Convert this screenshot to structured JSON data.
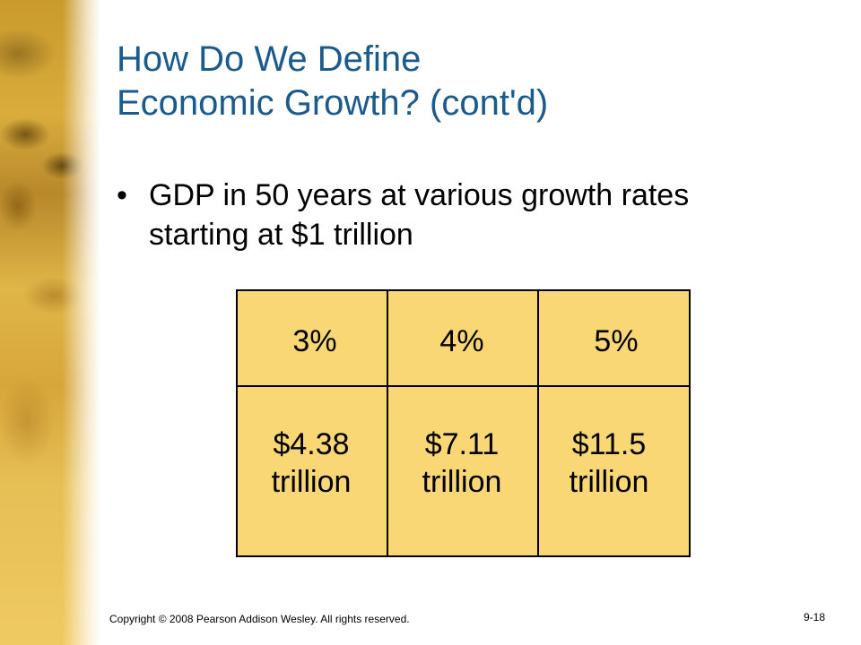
{
  "title": {
    "line1": "How Do We Define",
    "line2": "Economic Growth? (cont'd)"
  },
  "bullet": {
    "symbol": "•",
    "text_line1": "GDP in 50 years at various growth rates",
    "text_line2": "starting at $1 trillion"
  },
  "table": {
    "columns": [
      {
        "rate": "3%",
        "amount": "$4.38",
        "unit": "trillion"
      },
      {
        "rate": "4%",
        "amount": "$7.11",
        "unit": "trillion"
      },
      {
        "rate": "5%",
        "amount": "$11.5",
        "unit": "trillion"
      }
    ],
    "fill_color": "#f8d774"
  },
  "footer": {
    "copyright": "Copyright © 2008 Pearson Addison Wesley. All rights reserved.",
    "slide_number": "9-18"
  },
  "colors": {
    "title": "#1a5a8c",
    "accent_gold": "#d9ac3c"
  }
}
